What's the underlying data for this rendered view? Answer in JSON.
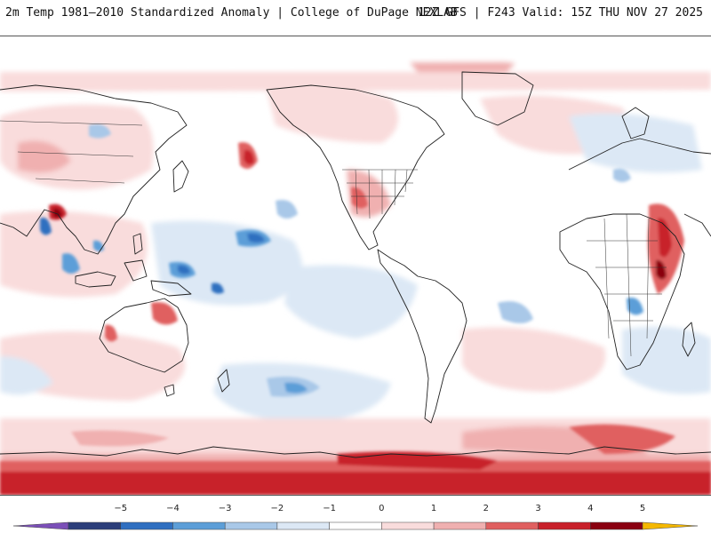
{
  "header": {
    "left_title": "2m Temp 1981–2010 Standardized Anomaly | College of DuPage NEXLAB",
    "right_title": "12Z GFS | F243 Valid: 15Z THU NOV 27 2025"
  },
  "map": {
    "product": "2m Temperature Standardized Anomaly",
    "regions": [
      {
        "name": "antarctic-warm-band",
        "anomaly": 4
      },
      {
        "name": "east-africa-warm",
        "anomaly": 4
      },
      {
        "name": "south-asia-warm",
        "anomaly": 5
      },
      {
        "name": "north-pacific-warm",
        "anomaly": 4
      },
      {
        "name": "west-pacific-cold",
        "anomaly": -4
      },
      {
        "name": "south-pacific-cold",
        "anomaly": -2
      },
      {
        "name": "southwest-us-warm",
        "anomaly": 2
      }
    ]
  },
  "colorbar": {
    "ticks": [
      "−5",
      "−4",
      "−3",
      "−2",
      "−1",
      "0",
      "1",
      "2",
      "3",
      "4",
      "5"
    ],
    "colors": [
      "#7b4fb8",
      "#2c3e7a",
      "#2f6fc0",
      "#5c9ed8",
      "#a9c8e8",
      "#dce8f5",
      "#ffffff",
      "#f9dcdc",
      "#f0b0b0",
      "#e06060",
      "#c8202a",
      "#8a0010",
      "#f5b800"
    ]
  }
}
